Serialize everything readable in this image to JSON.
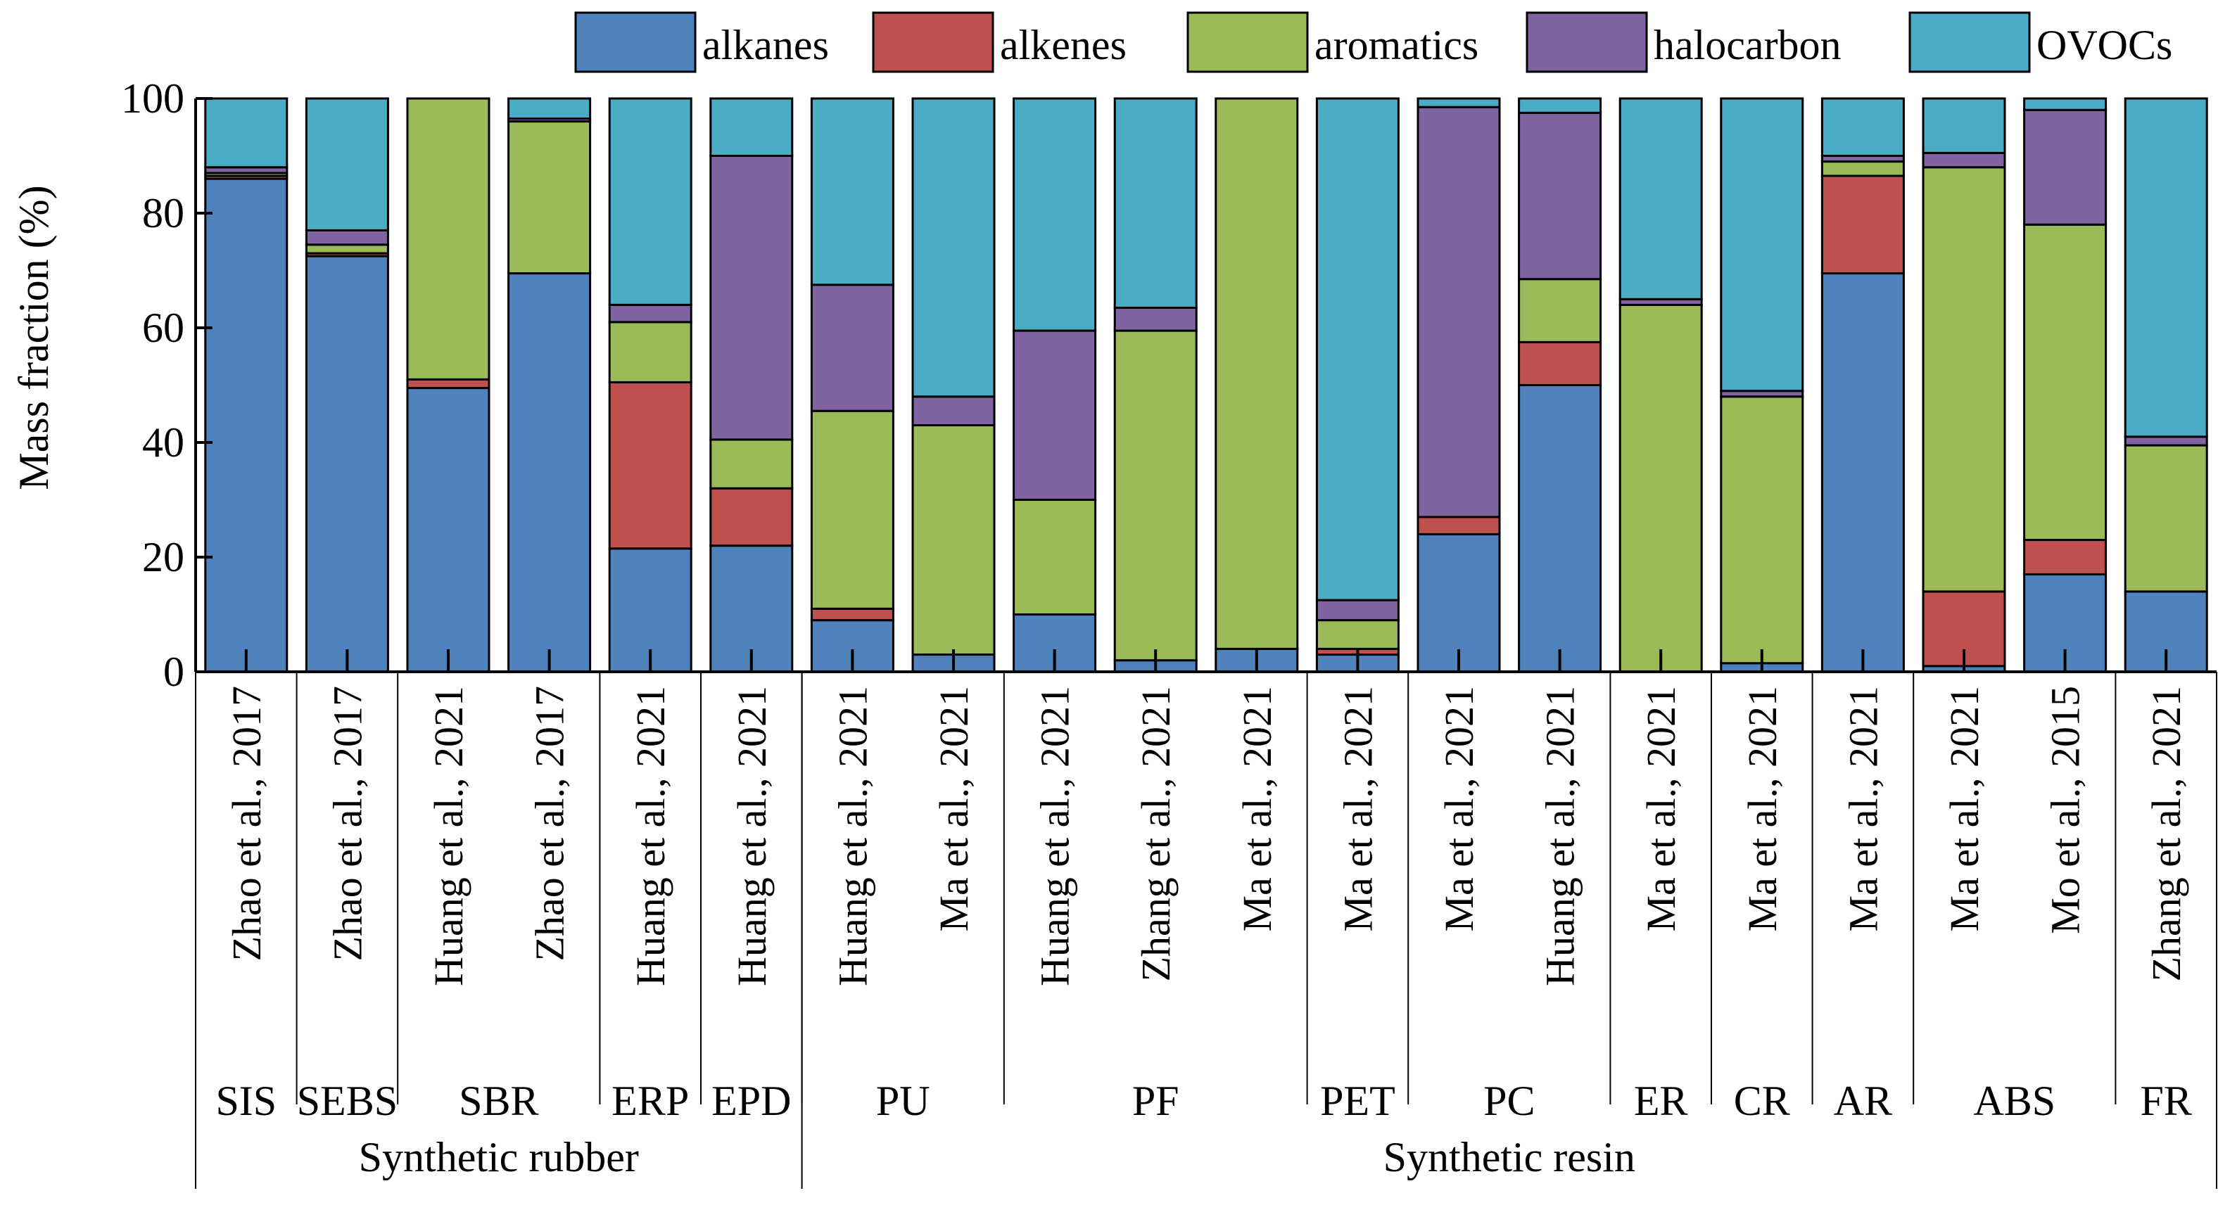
{
  "chart_data": {
    "type": "bar",
    "stacked": true,
    "title": "",
    "xlabel": "",
    "ylabel": "Mass fraction (%)",
    "ylim": [
      0,
      100
    ],
    "yticks": [
      0,
      20,
      40,
      60,
      80,
      100
    ],
    "grid": false,
    "legend_position": "top",
    "colors": {
      "alkanes": "#4f81bd",
      "alkenes": "#c0504d",
      "aromatics": "#9bbb59",
      "halocarbon": "#8064a2",
      "OVOCs": "#4bacc6"
    },
    "categories": [
      "Zhao et al., 2017",
      "Zhao et al., 2017",
      "Huang et al., 2021",
      "Zhao et al., 2017",
      "Huang et al., 2021",
      "Huang et al., 2021",
      "Huang et al., 2021",
      "Ma et al., 2021",
      "Huang et al., 2021",
      "Zhang et al., 2021",
      "Ma et al., 2021",
      "Ma et al., 2021",
      "Ma et al., 2021",
      "Huang et al., 2021",
      "Ma et al., 2021",
      "Ma et al., 2021",
      "Ma et al., 2021",
      "Ma et al., 2021",
      "Mo et al., 2015",
      "Zhang et al., 2021"
    ],
    "series": [
      {
        "name": "alkanes",
        "values": [
          86,
          72.5,
          49.5,
          69.5,
          21.5,
          22,
          9,
          3,
          10,
          2,
          4,
          3,
          24,
          50,
          0,
          1.5,
          69.5,
          1,
          17,
          14
        ]
      },
      {
        "name": "alkenes",
        "values": [
          0.5,
          0.5,
          1.5,
          0,
          29,
          10,
          2,
          0,
          0,
          0,
          0,
          1,
          3,
          7.5,
          0,
          0,
          17,
          13,
          6,
          0
        ]
      },
      {
        "name": "aromatics",
        "values": [
          0.5,
          1.5,
          49,
          26.5,
          10.5,
          8.5,
          34.5,
          40,
          20,
          57.5,
          96,
          5,
          0,
          11,
          64,
          46.5,
          2.5,
          74,
          55,
          25.5
        ]
      },
      {
        "name": "halocarbon",
        "values": [
          1,
          2.5,
          0,
          0.5,
          3,
          49.5,
          22,
          5,
          29.5,
          4,
          0,
          3.5,
          71.5,
          29,
          1,
          1,
          1,
          2.5,
          20,
          1.5
        ]
      },
      {
        "name": "OVOCs",
        "values": [
          12,
          23,
          0,
          3.5,
          36,
          10,
          32.5,
          52,
          40.5,
          36.5,
          0,
          87.5,
          1.5,
          2.5,
          35,
          51,
          10,
          9.5,
          2,
          59
        ]
      }
    ],
    "groups": [
      {
        "label": "SIS",
        "start": 0,
        "end": 0
      },
      {
        "label": "SEBS",
        "start": 1,
        "end": 1
      },
      {
        "label": "SBR",
        "start": 2,
        "end": 3
      },
      {
        "label": "ERP",
        "start": 4,
        "end": 4
      },
      {
        "label": "EPD",
        "start": 5,
        "end": 5
      },
      {
        "label": "PU",
        "start": 6,
        "end": 7
      },
      {
        "label": "PF",
        "start": 8,
        "end": 10
      },
      {
        "label": "PET",
        "start": 11,
        "end": 11
      },
      {
        "label": "PC",
        "start": 12,
        "end": 13
      },
      {
        "label": "ER",
        "start": 14,
        "end": 14
      },
      {
        "label": "CR",
        "start": 15,
        "end": 15
      },
      {
        "label": "AR",
        "start": 16,
        "end": 16
      },
      {
        "label": "ABS",
        "start": 17,
        "end": 18
      },
      {
        "label": "FR",
        "start": 19,
        "end": 19
      }
    ],
    "supergroups": [
      {
        "label": "Synthetic rubber",
        "start": 0,
        "end": 5
      },
      {
        "label": "Synthetic resin",
        "start": 6,
        "end": 19
      }
    ]
  }
}
